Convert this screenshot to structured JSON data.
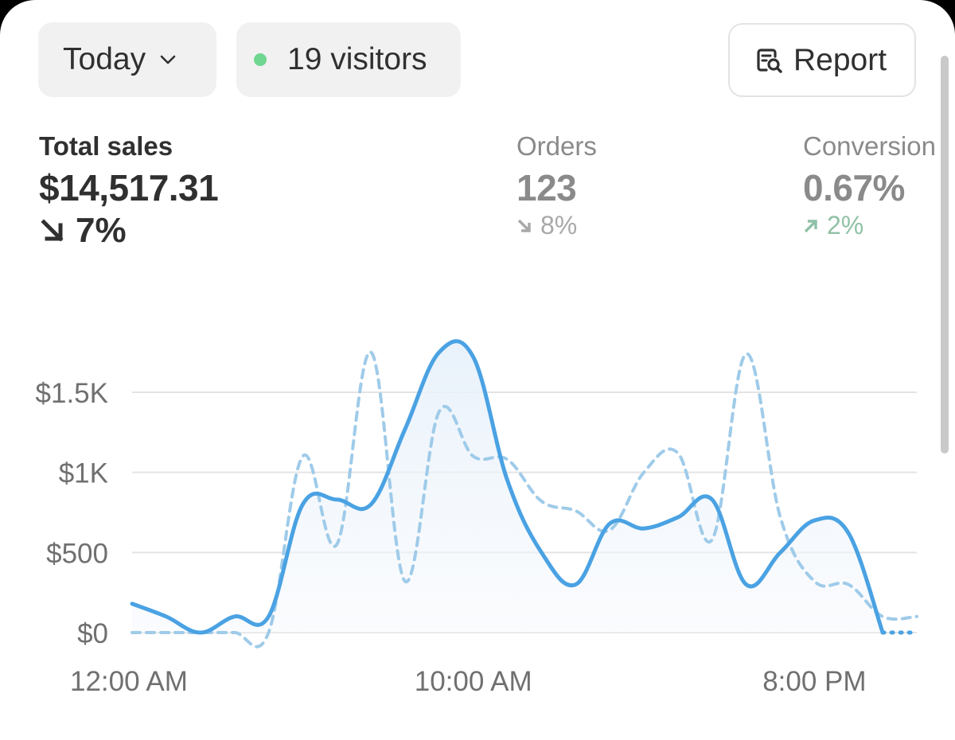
{
  "filters": {
    "date_range": "Today",
    "visitors": "19 visitors",
    "visitors_dot_color": "#6ed690"
  },
  "report_button": {
    "label": "Report",
    "icon": "report-search-icon"
  },
  "metrics": {
    "sales": {
      "label": "Total sales",
      "value": "$14,517.31",
      "delta": "7%",
      "direction": "down"
    },
    "orders": {
      "label": "Orders",
      "value": "123",
      "delta": "8%",
      "direction": "down"
    },
    "conversion": {
      "label": "Conversion",
      "value": "0.67%",
      "delta": "2%",
      "direction": "up"
    }
  },
  "colors": {
    "primary_line": "#4aa2e3",
    "comparison_line": "#9fcbe9",
    "gridline": "#e4e4e4",
    "text": "#303030"
  },
  "chart_data": {
    "type": "line",
    "x": [
      "12:00 AM",
      "1:00 AM",
      "2:00 AM",
      "3:00 AM",
      "4:00 AM",
      "5:00 AM",
      "6:00 AM",
      "7:00 AM",
      "8:00 AM",
      "9:00 AM",
      "10:00 AM",
      "11:00 AM",
      "12:00 PM",
      "1:00 PM",
      "2:00 PM",
      "3:00 PM",
      "4:00 PM",
      "5:00 PM",
      "6:00 PM",
      "7:00 PM",
      "8:00 PM",
      "9:00 PM",
      "10:00 PM",
      "11:00 PM"
    ],
    "x_tick_labels": [
      "12:00 AM",
      "10:00 AM",
      "8:00 PM"
    ],
    "y_tick_labels": [
      "$0",
      "$500",
      "$1K",
      "$1.5K"
    ],
    "y_ticks": [
      0,
      500,
      1000,
      1500
    ],
    "ylim": [
      0,
      1800
    ],
    "grid": true,
    "series": [
      {
        "style": "solid",
        "values": [
          180,
          100,
          0,
          100,
          100,
          800,
          830,
          800,
          1270,
          1750,
          1720,
          950,
          500,
          300,
          680,
          650,
          720,
          830,
          300,
          500,
          700,
          620,
          0,
          0
        ]
      },
      {
        "style": "dashed",
        "values": [
          0,
          0,
          0,
          0,
          0,
          1100,
          550,
          1750,
          320,
          1380,
          1100,
          1080,
          820,
          760,
          640,
          1000,
          1120,
          580,
          1740,
          720,
          320,
          300,
          100,
          100
        ]
      }
    ]
  }
}
